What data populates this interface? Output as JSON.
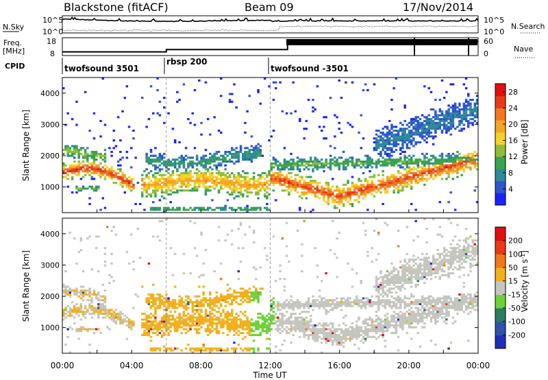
{
  "header": {
    "station": "Blackstone (fitACF)",
    "beam": "Beam 09",
    "date": "17/Nov/2014"
  },
  "chart_data": [
    {
      "type": "line",
      "panel": "noise",
      "left_label": "N.Sky",
      "right_label": "N.Search",
      "left_ticks": [
        "10^5",
        "10^0"
      ],
      "right_ticks": [
        "10^5",
        "10^0"
      ]
    },
    {
      "type": "line",
      "panel": "frequency",
      "left_label_1": "Freq.",
      "left_label_2": "[MHz]",
      "right_label": "Nave",
      "left_ticks": [
        18,
        8
      ],
      "right_ticks": [
        60,
        0
      ],
      "series": [
        {
          "x": [
            0,
            6,
            6,
            13,
            13,
            24
          ],
          "values": [
            9.5,
            9.5,
            11,
            11,
            16.5,
            16.5
          ]
        }
      ]
    },
    {
      "type": "table",
      "panel": "cpid",
      "label": "CPID",
      "segments": [
        {
          "label": "twofsound 3501",
          "start": 0,
          "end": 6
        },
        {
          "label": "rbsp 200",
          "start": 6,
          "end": 12
        },
        {
          "label": "twofsound -3501",
          "start": 12,
          "end": 24
        }
      ]
    },
    {
      "type": "heatmap",
      "panel": "power",
      "ylabel": "Slant Range [km]",
      "yticks": [
        1000,
        2000,
        3000,
        4000
      ],
      "ylim": [
        180,
        4500
      ],
      "colorbar": {
        "label": "Power [dB]",
        "ticks": [
          4,
          8,
          12,
          16,
          20,
          24,
          28
        ],
        "range": [
          0,
          30
        ],
        "colors": [
          "#1a23ff",
          "#2d55d0",
          "#2f8a9a",
          "#3aa34e",
          "#8fbd3a",
          "#f5d22a",
          "#f5a623",
          "#f07820",
          "#e83c19",
          "#e01010"
        ]
      }
    },
    {
      "type": "heatmap",
      "panel": "velocity",
      "ylabel": "Slant Range [km]",
      "xlabel": "Time UT",
      "yticks": [
        1000,
        2000,
        3000,
        4000
      ],
      "ylim": [
        180,
        4500
      ],
      "xticks": [
        "00:00",
        "04:00",
        "08:00",
        "12:00",
        "16:00",
        "20:00",
        "00:00"
      ],
      "xlim": [
        0,
        24
      ],
      "colorbar": {
        "label": "Velocity [m s",
        "label_sup": "-1",
        "label_close": "]",
        "ticks": [
          200,
          100,
          50,
          15,
          -15,
          -50,
          -100,
          -200
        ],
        "colors": [
          "#1f2eb8",
          "#2f52a8",
          "#2f7a60",
          "#6fd13a",
          "#c6c6c0",
          "#f2b01e",
          "#f07818",
          "#e83a16",
          "#e01010"
        ]
      }
    }
  ]
}
